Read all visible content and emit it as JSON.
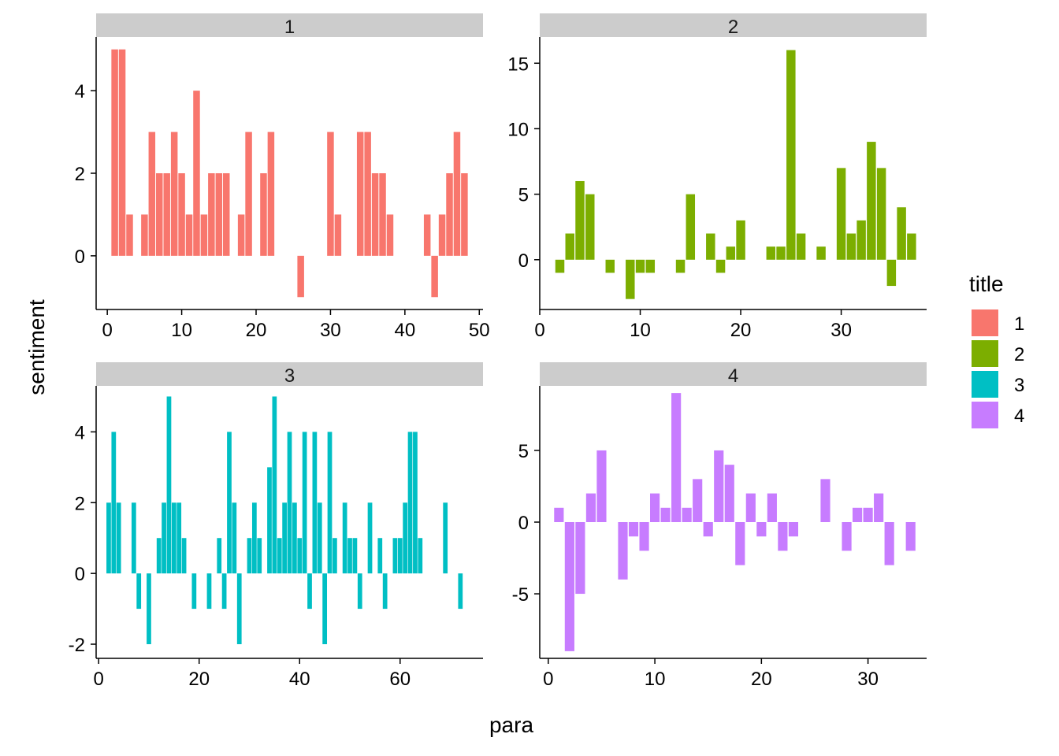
{
  "chart_data": {
    "type": "bar",
    "layout": "facet-wrap-2x2",
    "xlabel": "para",
    "ylabel": "sentiment",
    "legend": {
      "title": "title",
      "placement": "right",
      "entries": [
        {
          "label": "1",
          "color": "#F8766D"
        },
        {
          "label": "2",
          "color": "#7CAE00"
        },
        {
          "label": "3",
          "color": "#00BFC4"
        },
        {
          "label": "4",
          "color": "#C77CFF"
        }
      ]
    },
    "panels": [
      {
        "strip": "1",
        "color": "#F8766D",
        "xlim": [
          -1.5,
          50.5
        ],
        "ylim": [
          -1.3,
          5.3
        ],
        "xticks": [
          0,
          10,
          20,
          30,
          40,
          50
        ],
        "yticks": [
          0,
          2,
          4
        ],
        "x": [
          1,
          2,
          3,
          5,
          6,
          7,
          8,
          9,
          10,
          11,
          12,
          13,
          14,
          15,
          16,
          18,
          19,
          21,
          22,
          26,
          30,
          31,
          34,
          35,
          36,
          37,
          38,
          43,
          44,
          45,
          46,
          47,
          48
        ],
        "values": [
          5,
          5,
          1,
          1,
          3,
          2,
          2,
          3,
          2,
          1,
          4,
          1,
          2,
          2,
          2,
          1,
          3,
          2,
          3,
          -1,
          3,
          1,
          3,
          3,
          2,
          2,
          1,
          1,
          -1,
          1,
          2,
          3,
          2
        ]
      },
      {
        "strip": "2",
        "color": "#7CAE00",
        "xlim": [
          0,
          38.5
        ],
        "ylim": [
          -3.8,
          17
        ],
        "xticks": [
          0,
          10,
          20,
          30
        ],
        "yticks": [
          0,
          5,
          10,
          15
        ],
        "x": [
          2,
          3,
          4,
          5,
          7,
          9,
          10,
          11,
          14,
          15,
          17,
          18,
          19,
          20,
          23,
          24,
          25,
          26,
          28,
          30,
          31,
          32,
          33,
          34,
          35,
          36,
          37
        ],
        "values": [
          -1,
          2,
          6,
          5,
          -1,
          -3,
          -1,
          -1,
          -1,
          5,
          2,
          -1,
          1,
          3,
          1,
          1,
          16,
          2,
          1,
          7,
          2,
          3,
          9,
          7,
          -2,
          4,
          2
        ]
      },
      {
        "strip": "3",
        "color": "#00BFC4",
        "xlim": [
          -0.5,
          76.5
        ],
        "ylim": [
          -2.4,
          5.3
        ],
        "xticks": [
          0,
          20,
          40,
          60
        ],
        "yticks": [
          -2,
          0,
          2,
          4
        ],
        "x": [
          2,
          3,
          4,
          7,
          8,
          10,
          12,
          13,
          14,
          15,
          16,
          17,
          19,
          22,
          24,
          25,
          26,
          27,
          28,
          30,
          31,
          32,
          34,
          35,
          36,
          37,
          38,
          39,
          40,
          41,
          42,
          43,
          44,
          45,
          46,
          47,
          49,
          50,
          51,
          52,
          54,
          56,
          57,
          59,
          60,
          61,
          62,
          63,
          64,
          69,
          72
        ],
        "values": [
          2,
          4,
          2,
          2,
          -1,
          -2,
          1,
          2,
          5,
          2,
          2,
          1,
          -1,
          -1,
          1,
          -1,
          4,
          2,
          -2,
          1,
          2,
          1,
          3,
          5,
          1,
          2,
          4,
          2,
          1,
          4,
          -1,
          4,
          2,
          -2,
          4,
          1,
          2,
          1,
          1,
          -1,
          2,
          1,
          -1,
          1,
          1,
          2,
          4,
          4,
          1,
          2,
          -1
        ]
      },
      {
        "strip": "4",
        "color": "#C77CFF",
        "xlim": [
          -0.8,
          35.5
        ],
        "ylim": [
          -9.5,
          9.5
        ],
        "xticks": [
          0,
          10,
          20,
          30
        ],
        "yticks": [
          -5,
          0,
          5
        ],
        "x": [
          1,
          2,
          3,
          4,
          5,
          7,
          8,
          9,
          10,
          11,
          12,
          13,
          14,
          15,
          16,
          17,
          18,
          19,
          20,
          21,
          22,
          23,
          26,
          28,
          29,
          30,
          31,
          32,
          34
        ],
        "values": [
          1,
          -9,
          -5,
          2,
          5,
          -4,
          -1,
          -2,
          2,
          1,
          9,
          1,
          3,
          -1,
          5,
          4,
          -3,
          2,
          -1,
          2,
          -2,
          -1,
          3,
          -2,
          1,
          1,
          2,
          -3,
          -2
        ]
      }
    ]
  }
}
